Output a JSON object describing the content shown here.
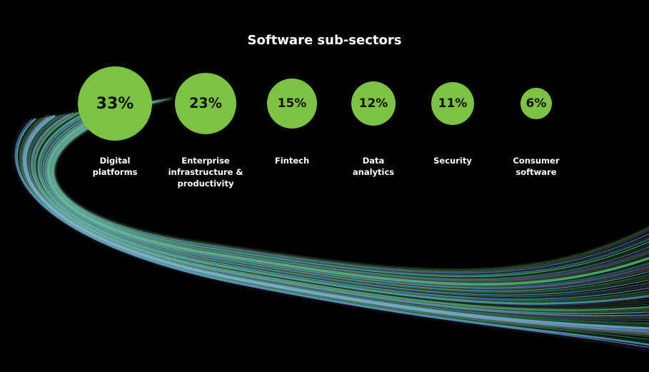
{
  "chart_data": {
    "type": "bubble",
    "title": "Software sub-sectors",
    "unit": "%",
    "categories": [
      "Digital platforms",
      "Enterprise infrastructure & productivity",
      "Fintech",
      "Data analytics",
      "Security",
      "Consumer software"
    ],
    "values": [
      33,
      23,
      15,
      12,
      11,
      6
    ],
    "value_labels": [
      "33%",
      "23%",
      "15%",
      "12%",
      "11%",
      "6%"
    ],
    "label_lines": [
      [
        "Digital",
        "platforms"
      ],
      [
        "Enterprise",
        "infrastructure &",
        "productivity"
      ],
      [
        "Fintech"
      ],
      [
        "Data",
        "analytics"
      ],
      [
        "Security"
      ],
      [
        "Consumer",
        "software"
      ]
    ]
  },
  "colors": {
    "background": "#000000",
    "bubble": "#7dc242",
    "value_text": "#111111",
    "label_text": "#ffffff",
    "swoosh": [
      "#8ee07a",
      "#5fc4e8",
      "#6a7fd6",
      "#c8f5c0",
      "#3fa9d8",
      "#4fbf73"
    ]
  }
}
